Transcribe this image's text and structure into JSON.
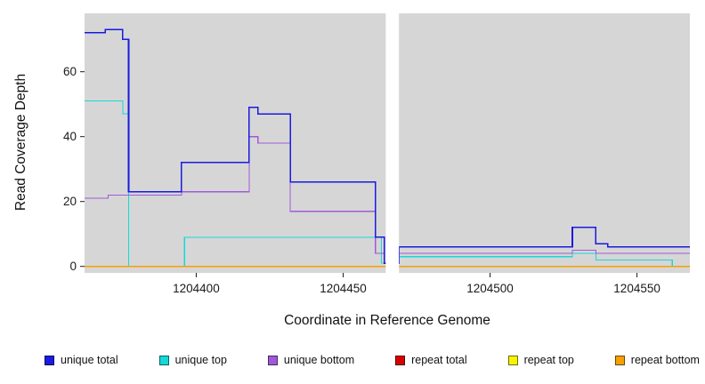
{
  "figure": {
    "plot_bg": "#d6d6d6",
    "background": "#ffffff",
    "tick_color": "#1a1a1a"
  },
  "chart_data": {
    "type": "line",
    "step": true,
    "title": "",
    "xlabel": "Coordinate in Reference Genome",
    "ylabel": "Read Coverage Depth",
    "xlim": [
      1204362,
      1204568
    ],
    "ylim": [
      -2,
      78
    ],
    "x_ticks": [
      1204400,
      1204450,
      1204500,
      1204550
    ],
    "y_ticks": [
      0,
      20,
      40,
      60
    ],
    "gap_region": [
      1204464.5,
      1204469
    ],
    "legend_position": "bottom",
    "grid": false,
    "series": [
      {
        "name": "unique total",
        "color": "#1a1ae0",
        "width": 1.6,
        "points": [
          [
            1204362,
            72
          ],
          [
            1204369,
            73
          ],
          [
            1204375,
            70
          ],
          [
            1204377,
            23
          ],
          [
            1204395,
            32
          ],
          [
            1204418,
            49
          ],
          [
            1204421,
            47
          ],
          [
            1204432,
            26
          ],
          [
            1204461,
            9
          ],
          [
            1204464,
            1
          ],
          [
            1204469,
            6
          ],
          [
            1204528,
            12
          ],
          [
            1204536,
            7
          ],
          [
            1204540,
            6
          ]
        ]
      },
      {
        "name": "unique top",
        "color": "#16d8d8",
        "width": 1.2,
        "points": [
          [
            1204362,
            51
          ],
          [
            1204375,
            47
          ],
          [
            1204377,
            0
          ],
          [
            1204396,
            9
          ],
          [
            1204463,
            1
          ],
          [
            1204469,
            3
          ],
          [
            1204528,
            4
          ],
          [
            1204536,
            2
          ],
          [
            1204562,
            0
          ]
        ]
      },
      {
        "name": "unique bottom",
        "color": "#a05ad8",
        "width": 1.2,
        "points": [
          [
            1204362,
            21
          ],
          [
            1204370,
            22
          ],
          [
            1204395,
            23
          ],
          [
            1204418,
            40
          ],
          [
            1204421,
            38
          ],
          [
            1204432,
            17
          ],
          [
            1204461,
            4
          ],
          [
            1204464,
            1
          ],
          [
            1204469,
            4
          ],
          [
            1204528,
            5
          ],
          [
            1204536,
            4
          ]
        ]
      },
      {
        "name": "repeat total",
        "color": "#d40000",
        "width": 1.2,
        "points": [
          [
            1204362,
            0
          ]
        ]
      },
      {
        "name": "repeat top",
        "color": "#f5f500",
        "width": 1.2,
        "points": [
          [
            1204362,
            0
          ]
        ]
      },
      {
        "name": "repeat bottom",
        "color": "#f5a000",
        "width": 1.2,
        "points": [
          [
            1204362,
            0
          ]
        ]
      }
    ]
  }
}
